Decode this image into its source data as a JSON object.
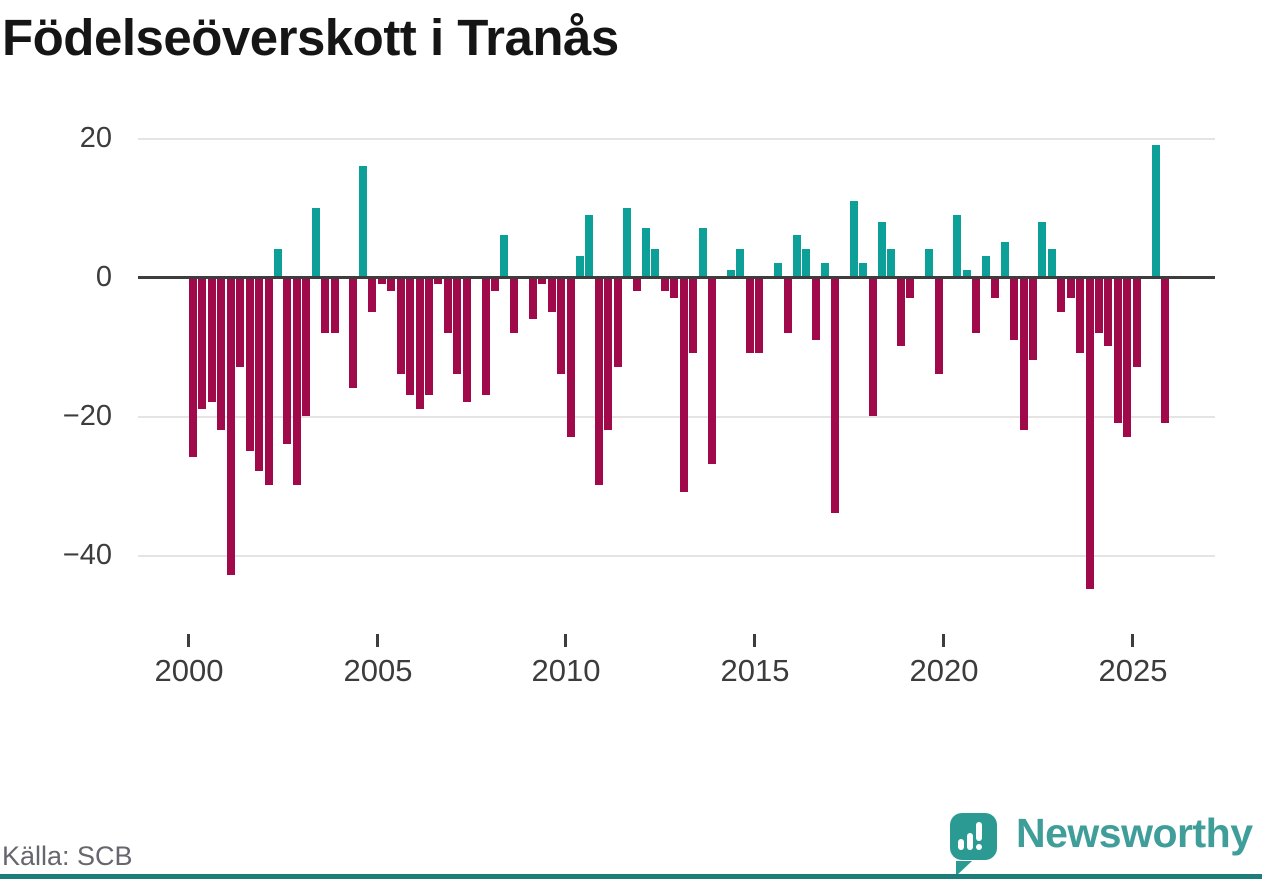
{
  "title": "Födelseöverskott i Tranås",
  "footer": {
    "source_label": "Källa: SCB"
  },
  "brand": {
    "name": "Newsworthy"
  },
  "colors": {
    "positive": "#0da099",
    "negative": "#a00a4b",
    "zero_line": "#3d3d3d",
    "gridline": "#e4e4e4",
    "title_text": "#151515",
    "axis_text": "#3c3c3c",
    "source_text": "#66666e",
    "brand_teal": "#2a9a93",
    "brand_text_teal": "#3f9e99",
    "footer_strip": "#1d7d79"
  },
  "chart_data": {
    "type": "bar",
    "title": "Födelseöverskott i Tranås",
    "frequency": "quarterly",
    "x_start": "2000 Q1",
    "x_end": "2025 Q4",
    "y_ticks": [
      20,
      0,
      -20,
      -40
    ],
    "x_ticks": [
      2000,
      2005,
      2010,
      2015,
      2020,
      2025
    ],
    "ylim": [
      -47,
      22
    ],
    "grid": true,
    "legend": false,
    "series": [
      {
        "name": "Födelseöverskott",
        "values": [
          -26,
          -19,
          -18,
          -22,
          -43,
          -13,
          -25,
          -28,
          -30,
          4,
          -24,
          -30,
          -20,
          10,
          -8,
          -8,
          0,
          -16,
          16,
          -5,
          -1,
          -2,
          -14,
          -17,
          -19,
          -17,
          -1,
          -8,
          -14,
          -18,
          0,
          -17,
          -2,
          6,
          -8,
          0,
          -6,
          -1,
          -5,
          -14,
          -23,
          3,
          9,
          -30,
          -22,
          -13,
          10,
          -2,
          7,
          4,
          -2,
          -3,
          -31,
          -11,
          7,
          -27,
          0,
          1,
          4,
          -11,
          -11,
          0,
          2,
          -8,
          6,
          4,
          -9,
          2,
          -34,
          0,
          11,
          2,
          -20,
          8,
          4,
          -10,
          -3,
          0,
          4,
          -14,
          0,
          9,
          1,
          -8,
          3,
          -3,
          5,
          -9,
          -22,
          -12,
          8,
          4,
          -5,
          -3,
          -11,
          -45,
          -8,
          -10,
          -21,
          -23,
          -13,
          0,
          19,
          -21
        ]
      }
    ]
  }
}
